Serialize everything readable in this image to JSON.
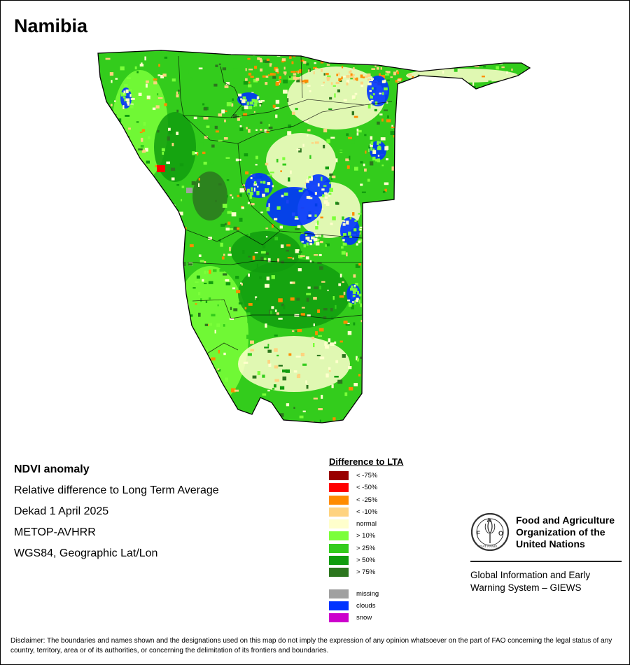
{
  "map": {
    "title": "Namibia",
    "country": "Namibia",
    "palette": {
      "lt75": "#990000",
      "lt50": "#ff0000",
      "lt25": "#ff8c00",
      "lt10": "#ffd37f",
      "normal": "#ffffcc",
      "gt10": "#7bff3a",
      "gt25": "#33cc1c",
      "gt50": "#119c0e",
      "gt75": "#2c761e",
      "missing": "#a0a0a0",
      "clouds": "#0033ff",
      "snow": "#cc00cc",
      "border": "#000000"
    }
  },
  "info": {
    "heading": "NDVI anomaly",
    "line1": "Relative difference to Long Term Average",
    "line2": "Dekad 1 April 2025",
    "line3": "METOP-AVHRR",
    "line4": "WGS84, Geographic Lat/Lon"
  },
  "legend": {
    "title": "Difference to LTA",
    "classes": [
      {
        "label": "< -75%",
        "color": "#990000"
      },
      {
        "label": "< -50%",
        "color": "#ff0000"
      },
      {
        "label": "< -25%",
        "color": "#ff8c00"
      },
      {
        "label": "< -10%",
        "color": "#ffd37f"
      },
      {
        "label": "normal",
        "color": "#ffffcc"
      },
      {
        "label": "> 10%",
        "color": "#7bff3a"
      },
      {
        "label": "> 25%",
        "color": "#33cc1c"
      },
      {
        "label": "> 50%",
        "color": "#119c0e"
      },
      {
        "label": "> 75%",
        "color": "#2c761e"
      }
    ],
    "extra": [
      {
        "label": "missing",
        "color": "#a0a0a0"
      },
      {
        "label": "clouds",
        "color": "#0033ff"
      },
      {
        "label": "snow",
        "color": "#cc00cc"
      }
    ]
  },
  "org": {
    "logo_letters": "FAO",
    "logo_motto": "FIAT PANIS",
    "name_line1": "Food and Agriculture",
    "name_line2": "Organization of the",
    "name_line3": "United Nations",
    "giews_line1": "Global Information and Early",
    "giews_line2": "Warning System – GIEWS"
  },
  "disclaimer": "Disclaimer: The boundaries and names shown and the designations used on this map do not imply the expression of any opinion whatsoever on the part of FAO concerning the legal status of any country, territory, area or of its authorities, or concerning the delimitation of its frontiers and boundaries."
}
